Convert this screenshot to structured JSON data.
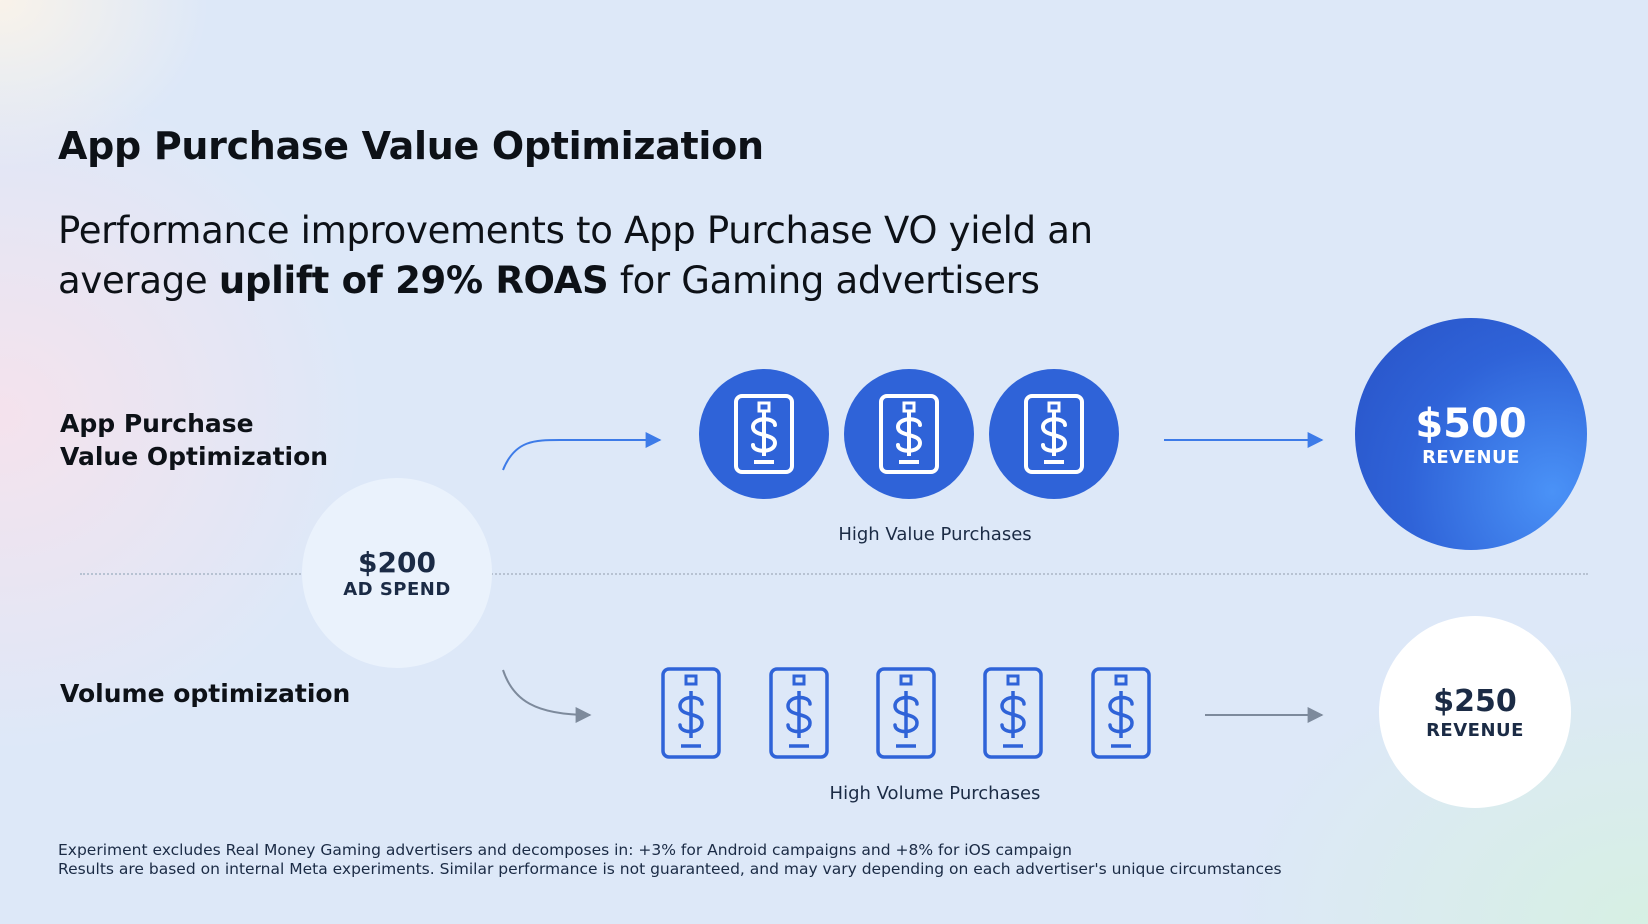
{
  "title": "App Purchase Value Optimization",
  "subtitle": {
    "line1": "Performance improvements to App Purchase VO yield an",
    "line2_prefix": "average ",
    "line2_bold": "uplift of 29% ROAS",
    "line2_suffix": " for Gaming advertisers"
  },
  "rows": {
    "top": {
      "label_line1": "App Purchase",
      "label_line2": "Value Optimization"
    },
    "bottom": {
      "label": "Volume optimization"
    }
  },
  "ad_spend": {
    "amount": "$200",
    "label": "AD SPEND"
  },
  "high_value": {
    "caption": "High Value Purchases",
    "count": 3
  },
  "high_volume": {
    "caption": "High Volume Purchases",
    "count": 5
  },
  "revenue_value_opt": {
    "amount": "$500",
    "label": "REVENUE"
  },
  "revenue_volume_opt": {
    "amount": "$250",
    "label": "REVENUE"
  },
  "footnotes": {
    "line1": "Experiment excludes Real Money Gaming advertisers  and decomposes in: +3% for Android campaigns and +8% for iOS campaign",
    "line2": "Results are based on internal Meta experiments. Similar performance is not guaranteed, and may vary depending on each advertiser's unique circumstances"
  },
  "colors": {
    "accent_blue": "#2f63d8",
    "arrow_blue": "#3d7be8",
    "arrow_gray": "#7d8a9c",
    "text_dark": "#0d1117"
  },
  "icons": {
    "purchase": "phone-dollar-icon",
    "arrow": "arrow-right-icon"
  }
}
